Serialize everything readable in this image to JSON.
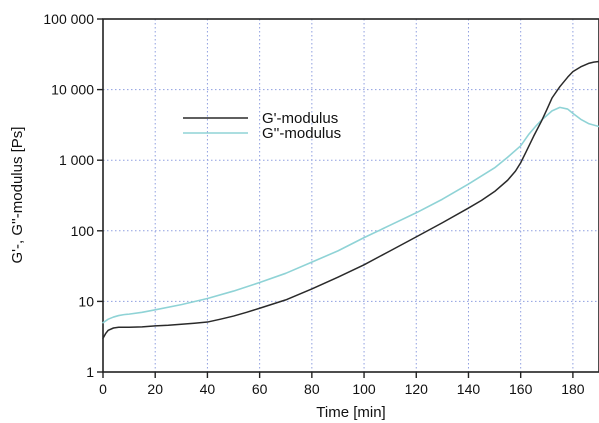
{
  "chart_data": {
    "type": "line",
    "xlabel": "Time [min]",
    "ylabel": "G'-, G''-modulus [Ps]",
    "xlim": [
      0,
      190
    ],
    "ylim": [
      1,
      100000
    ],
    "yscale": "log",
    "grid": true,
    "legend_position": "top-left",
    "x_ticks": [
      0,
      20,
      40,
      60,
      80,
      100,
      120,
      140,
      160,
      180
    ],
    "x_tick_labels": [
      "0",
      "20",
      "40",
      "60",
      "80",
      "100",
      "120",
      "140",
      "160",
      "180"
    ],
    "y_ticks": [
      1,
      10,
      100,
      1000,
      10000,
      100000
    ],
    "y_tick_labels": [
      "1",
      "10",
      "100",
      "1 000",
      "10 000",
      "100 000"
    ],
    "series": [
      {
        "name": "G'-modulus",
        "color": "#2a2a2a",
        "x": [
          0,
          1,
          2,
          4,
          6,
          8,
          10,
          15,
          20,
          25,
          30,
          35,
          40,
          45,
          50,
          55,
          60,
          70,
          80,
          90,
          100,
          110,
          120,
          130,
          140,
          145,
          150,
          155,
          158,
          160,
          162,
          165,
          168,
          170,
          172,
          175,
          178,
          180,
          183,
          186,
          188,
          190
        ],
        "y": [
          3.0,
          3.5,
          3.9,
          4.2,
          4.3,
          4.3,
          4.3,
          4.35,
          4.5,
          4.6,
          4.75,
          4.9,
          5.1,
          5.6,
          6.2,
          7.0,
          8.0,
          10.5,
          15,
          22,
          33,
          52,
          82,
          130,
          210,
          270,
          360,
          520,
          700,
          920,
          1300,
          2200,
          3600,
          5200,
          7600,
          11000,
          15000,
          18000,
          21000,
          23500,
          24500,
          25000
        ]
      },
      {
        "name": "G''-modulus",
        "color": "#8fd3d6",
        "x": [
          0,
          2,
          4,
          6,
          8,
          10,
          15,
          20,
          30,
          40,
          50,
          60,
          70,
          80,
          90,
          100,
          110,
          120,
          130,
          140,
          150,
          155,
          160,
          163,
          166,
          168,
          170,
          172,
          175,
          178,
          180,
          183,
          186,
          190
        ],
        "y": [
          5.0,
          5.6,
          6.0,
          6.3,
          6.5,
          6.6,
          7.0,
          7.6,
          9.0,
          11,
          14,
          18.5,
          25,
          36,
          52,
          80,
          120,
          180,
          280,
          460,
          780,
          1100,
          1600,
          2300,
          3100,
          3700,
          4300,
          5000,
          5600,
          5300,
          4600,
          3800,
          3300,
          3000
        ]
      }
    ]
  }
}
